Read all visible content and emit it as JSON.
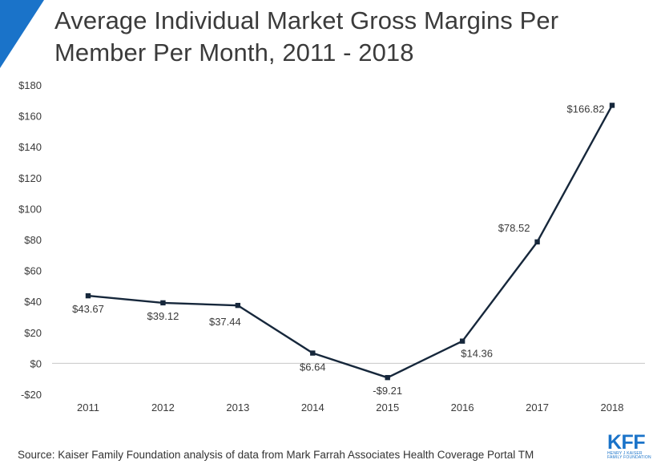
{
  "header": {
    "title_line1": "Average Individual Market Gross Margins Per",
    "title_line2": "Member Per Month, 2011 - 2018"
  },
  "colors": {
    "accent": "#1a73c9",
    "line": "#16273b",
    "axis": "#c8c8c8",
    "text": "#3a3a3a",
    "logo": "#1a73c9"
  },
  "chart_data": {
    "type": "line",
    "title": "Average Individual Market Gross Margins Per Member Per Month, 2011 - 2018",
    "xlabel": "",
    "ylabel": "",
    "categories": [
      "2011",
      "2012",
      "2013",
      "2014",
      "2015",
      "2016",
      "2017",
      "2018"
    ],
    "series": [
      {
        "values": [
          43.67,
          39.12,
          37.44,
          6.64,
          -9.21,
          14.36,
          78.52,
          166.82
        ],
        "labels": [
          "$43.67",
          "$39.12",
          "$37.44",
          "$6.64",
          "-$9.21",
          "$14.36",
          "$78.52",
          "$166.82"
        ]
      }
    ],
    "ylim": [
      -20,
      180
    ],
    "yticks": [
      -20,
      0,
      20,
      40,
      60,
      80,
      100,
      120,
      140,
      160,
      180
    ],
    "ytick_labels": [
      "-$20",
      "$0",
      "$20",
      "$40",
      "$60",
      "$80",
      "$100",
      "$120",
      "$140",
      "$160",
      "$180"
    ],
    "grid": false,
    "legend": "none",
    "zero_line": true
  },
  "footer": {
    "source": "Source: Kaiser Family Foundation analysis of data from Mark Farrah Associates Health Coverage Portal TM",
    "logo_main": "KFF",
    "logo_sub_line1": "HENRY J KAISER",
    "logo_sub_line2": "FAMILY FOUNDATION"
  }
}
